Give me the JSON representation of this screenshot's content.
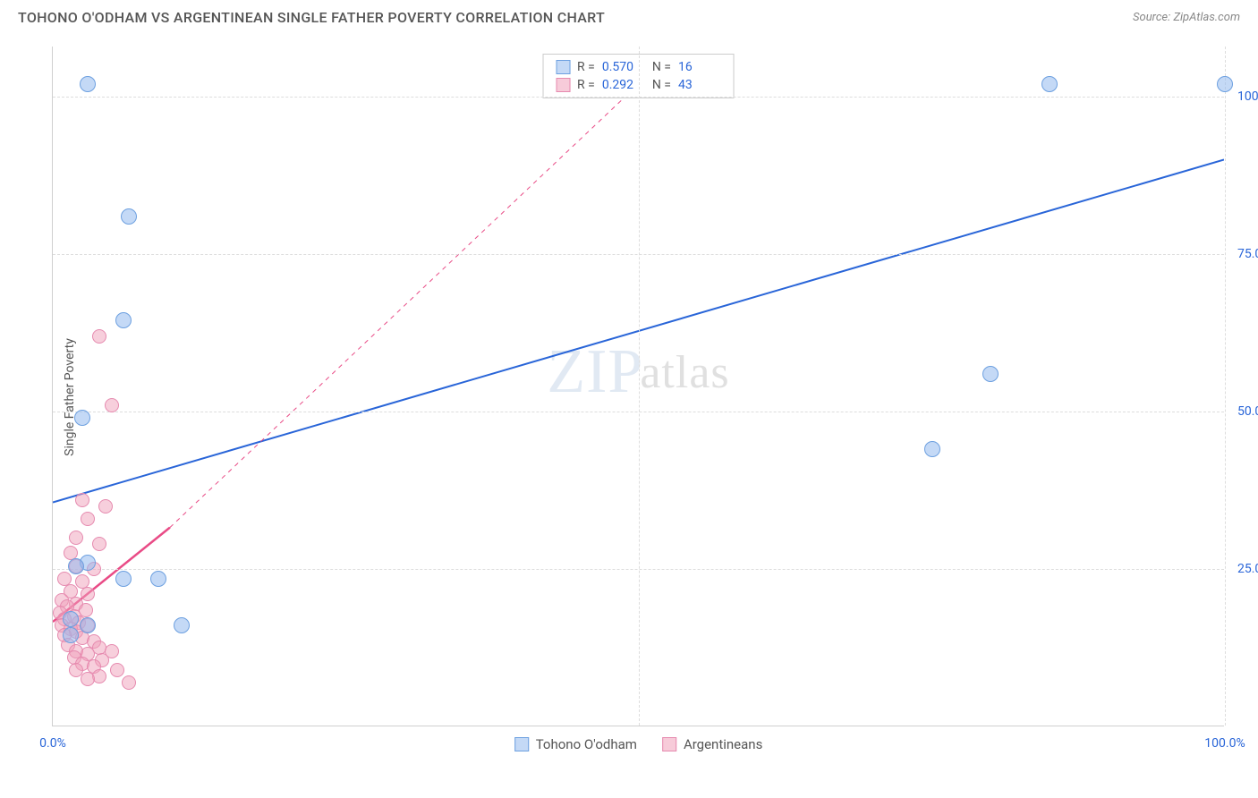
{
  "header": {
    "title": "TOHONO O'ODHAM VS ARGENTINEAN SINGLE FATHER POVERTY CORRELATION CHART",
    "source_prefix": "Source: ",
    "source_name": "ZipAtlas.com"
  },
  "chart": {
    "type": "scatter",
    "ylabel": "Single Father Poverty",
    "background_color": "#ffffff",
    "grid_color": "#dddddd",
    "axis_color": "#d0d0d0",
    "tick_color": "#2965d8",
    "title_color": "#555555",
    "xlim": [
      0,
      100
    ],
    "ylim": [
      0,
      108
    ],
    "x_ticks": [
      {
        "pos": 0,
        "label": "0.0%"
      },
      {
        "pos": 100,
        "label": "100.0%"
      }
    ],
    "x_grid_positions": [
      50,
      100
    ],
    "y_ticks": [
      {
        "pos": 25,
        "label": "25.0%"
      },
      {
        "pos": 50,
        "label": "50.0%"
      },
      {
        "pos": 75,
        "label": "75.0%"
      },
      {
        "pos": 100,
        "label": "100.0%"
      }
    ],
    "stats": [
      {
        "series": "blue",
        "r_label": "R =",
        "r_value": "0.570",
        "n_label": "N =",
        "n_value": "16"
      },
      {
        "series": "pink",
        "r_label": "R =",
        "r_value": "0.292",
        "n_label": "N =",
        "n_value": "43"
      }
    ],
    "legend": [
      {
        "series": "blue",
        "label": "Tohono O'odham"
      },
      {
        "series": "pink",
        "label": "Argentineans"
      }
    ],
    "series_colors": {
      "blue": {
        "fill": "rgba(147,185,238,0.55)",
        "stroke": "#6da0e0",
        "line": "#2965d8"
      },
      "pink": {
        "fill": "rgba(240,160,185,0.5)",
        "stroke": "#e68aaf",
        "line": "#e94b86"
      }
    },
    "marker_radius": 9,
    "trend_lines": [
      {
        "series": "blue",
        "x1": 0,
        "y1": 35.5,
        "x2": 100,
        "y2": 90,
        "width": 2,
        "dash": "none"
      },
      {
        "series": "pink",
        "x1": 0,
        "y1": 16.5,
        "x2": 10,
        "y2": 31.5,
        "width": 2.5,
        "dash": "none"
      },
      {
        "series": "pink",
        "x1": 10,
        "y1": 31.5,
        "x2": 50,
        "y2": 102,
        "width": 1,
        "dash": "5,5"
      }
    ],
    "points": {
      "blue": [
        {
          "x": 3,
          "y": 102
        },
        {
          "x": 85,
          "y": 102
        },
        {
          "x": 100,
          "y": 102
        },
        {
          "x": 6.5,
          "y": 81
        },
        {
          "x": 6,
          "y": 64.5
        },
        {
          "x": 2.5,
          "y": 49
        },
        {
          "x": 80,
          "y": 56
        },
        {
          "x": 75,
          "y": 44
        },
        {
          "x": 3,
          "y": 26
        },
        {
          "x": 6,
          "y": 23.5
        },
        {
          "x": 9,
          "y": 23.5
        },
        {
          "x": 1.5,
          "y": 17
        },
        {
          "x": 3,
          "y": 16
        },
        {
          "x": 2,
          "y": 25.5
        },
        {
          "x": 11,
          "y": 16
        },
        {
          "x": 1.5,
          "y": 14.5
        }
      ],
      "pink": [
        {
          "x": 4,
          "y": 62
        },
        {
          "x": 5,
          "y": 51
        },
        {
          "x": 2.5,
          "y": 36
        },
        {
          "x": 4.5,
          "y": 35
        },
        {
          "x": 3,
          "y": 33
        },
        {
          "x": 2,
          "y": 30
        },
        {
          "x": 4,
          "y": 29
        },
        {
          "x": 1.5,
          "y": 27.5
        },
        {
          "x": 2,
          "y": 25.5
        },
        {
          "x": 3.5,
          "y": 25
        },
        {
          "x": 1,
          "y": 23.5
        },
        {
          "x": 2.5,
          "y": 23
        },
        {
          "x": 1.5,
          "y": 21.5
        },
        {
          "x": 3,
          "y": 21
        },
        {
          "x": 0.8,
          "y": 20
        },
        {
          "x": 2,
          "y": 19.5
        },
        {
          "x": 1.2,
          "y": 19
        },
        {
          "x": 2.8,
          "y": 18.5
        },
        {
          "x": 0.6,
          "y": 18
        },
        {
          "x": 1.8,
          "y": 17.5
        },
        {
          "x": 1,
          "y": 17
        },
        {
          "x": 2.2,
          "y": 16.5
        },
        {
          "x": 3,
          "y": 16
        },
        {
          "x": 0.8,
          "y": 16
        },
        {
          "x": 1.5,
          "y": 15.5
        },
        {
          "x": 2,
          "y": 15
        },
        {
          "x": 1,
          "y": 14.5
        },
        {
          "x": 2.5,
          "y": 14
        },
        {
          "x": 3.5,
          "y": 13.5
        },
        {
          "x": 1.3,
          "y": 13
        },
        {
          "x": 4,
          "y": 12.5
        },
        {
          "x": 2,
          "y": 12
        },
        {
          "x": 5,
          "y": 12
        },
        {
          "x": 3,
          "y": 11.5
        },
        {
          "x": 1.8,
          "y": 11
        },
        {
          "x": 4.2,
          "y": 10.5
        },
        {
          "x": 2.5,
          "y": 10
        },
        {
          "x": 3.5,
          "y": 9.5
        },
        {
          "x": 5.5,
          "y": 9
        },
        {
          "x": 2,
          "y": 9
        },
        {
          "x": 4,
          "y": 8
        },
        {
          "x": 6.5,
          "y": 7
        },
        {
          "x": 3,
          "y": 7.5
        }
      ]
    },
    "watermark": {
      "part1": "ZIP",
      "part2": "atlas"
    }
  }
}
